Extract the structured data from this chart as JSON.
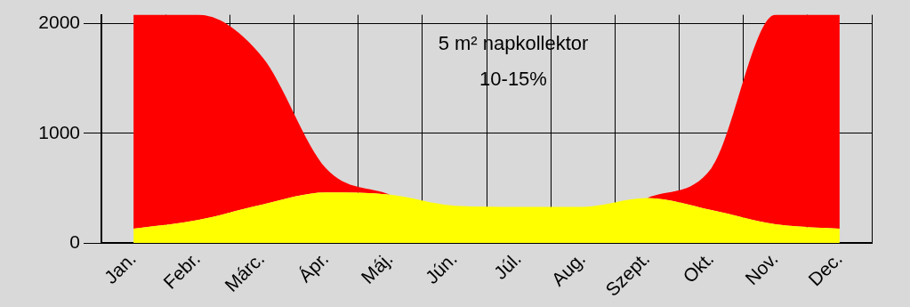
{
  "chart_data": {
    "type": "area",
    "stacked": true,
    "grid": true,
    "categories": [
      "Jan.",
      "Febr.",
      "Márc.",
      "Ápr.",
      "Máj.",
      "Jún.",
      "Júl.",
      "Aug.",
      "Szept.",
      "Okt.",
      "Nov.",
      "Dec."
    ],
    "series": [
      {
        "color": "#ffff00",
        "values": [
          130,
          210,
          350,
          460,
          440,
          340,
          330,
          330,
          410,
          300,
          170,
          130
        ]
      },
      {
        "color": "#ff0000",
        "values": [
          1950,
          1870,
          1350,
          220,
          0,
          null,
          null,
          null,
          0,
          380,
          1910,
          1950
        ]
      }
    ],
    "ylim": [
      0,
      2080
    ],
    "yticks": [
      0,
      1000,
      2000
    ],
    "annotations": [
      "5 m² napkollektor",
      "10-15%"
    ]
  }
}
